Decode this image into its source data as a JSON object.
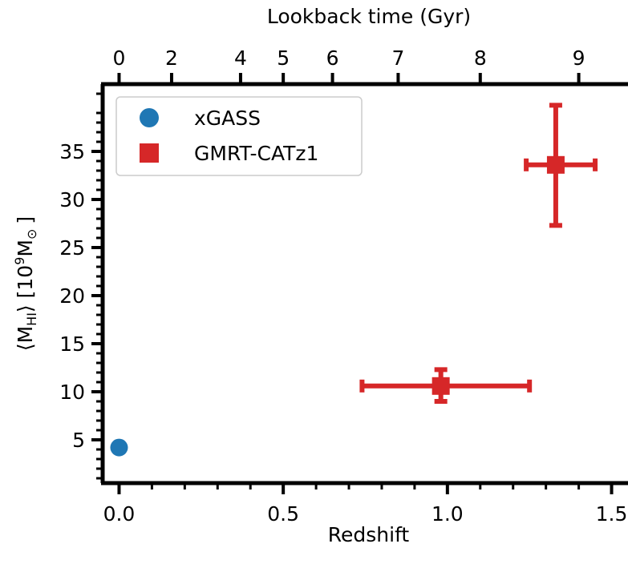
{
  "chart_data": {
    "type": "scatter",
    "xlabel": "Redshift",
    "ylabel_parts": {
      "main": "⟨M",
      "sub": "HI",
      "mid": "⟩ [10",
      "sup": "9",
      "m": "M",
      "sun_sub": "⊙",
      "end": "]"
    },
    "top_xlabel": "Lookback time (Gyr)",
    "xlim": [
      -0.05,
      1.55
    ],
    "ylim": [
      0.5,
      42.0
    ],
    "x_ticks": [
      {
        "value": 0.0,
        "label": "0.0"
      },
      {
        "value": 0.5,
        "label": "0.5"
      },
      {
        "value": 1.0,
        "label": "1.0"
      },
      {
        "value": 1.5,
        "label": "1.5"
      }
    ],
    "y_ticks": [
      {
        "value": 5,
        "label": "5"
      },
      {
        "value": 10,
        "label": "10"
      },
      {
        "value": 15,
        "label": "15"
      },
      {
        "value": 20,
        "label": "20"
      },
      {
        "value": 25,
        "label": "25"
      },
      {
        "value": 30,
        "label": "30"
      },
      {
        "value": 35,
        "label": "35"
      }
    ],
    "top_ticks": [
      {
        "z": 0.0,
        "label": "0"
      },
      {
        "z": 0.16,
        "label": "2"
      },
      {
        "z": 0.37,
        "label": "4"
      },
      {
        "z": 0.5,
        "label": "5"
      },
      {
        "z": 0.65,
        "label": "6"
      },
      {
        "z": 0.85,
        "label": "7"
      },
      {
        "z": 1.1,
        "label": "8"
      },
      {
        "z": 1.4,
        "label": "9"
      }
    ],
    "series": [
      {
        "name": "xGASS",
        "marker": "circle",
        "color": "#1f77b4",
        "points": [
          {
            "x": 0.0,
            "y": 4.2
          }
        ]
      },
      {
        "name": "GMRT-CATz1",
        "marker": "square",
        "color": "#d62728",
        "points": [
          {
            "x": 0.98,
            "y": 10.6,
            "xerr": [
              0.74,
              1.25
            ],
            "yerr": [
              9.0,
              12.3
            ]
          },
          {
            "x": 1.33,
            "y": 33.6,
            "xerr": [
              1.24,
              1.45
            ],
            "yerr": [
              27.3,
              39.8
            ]
          }
        ]
      }
    ],
    "legend": {
      "position": "top-left",
      "entries": [
        "xGASS",
        "GMRT-CATz1"
      ]
    },
    "grid": false
  }
}
